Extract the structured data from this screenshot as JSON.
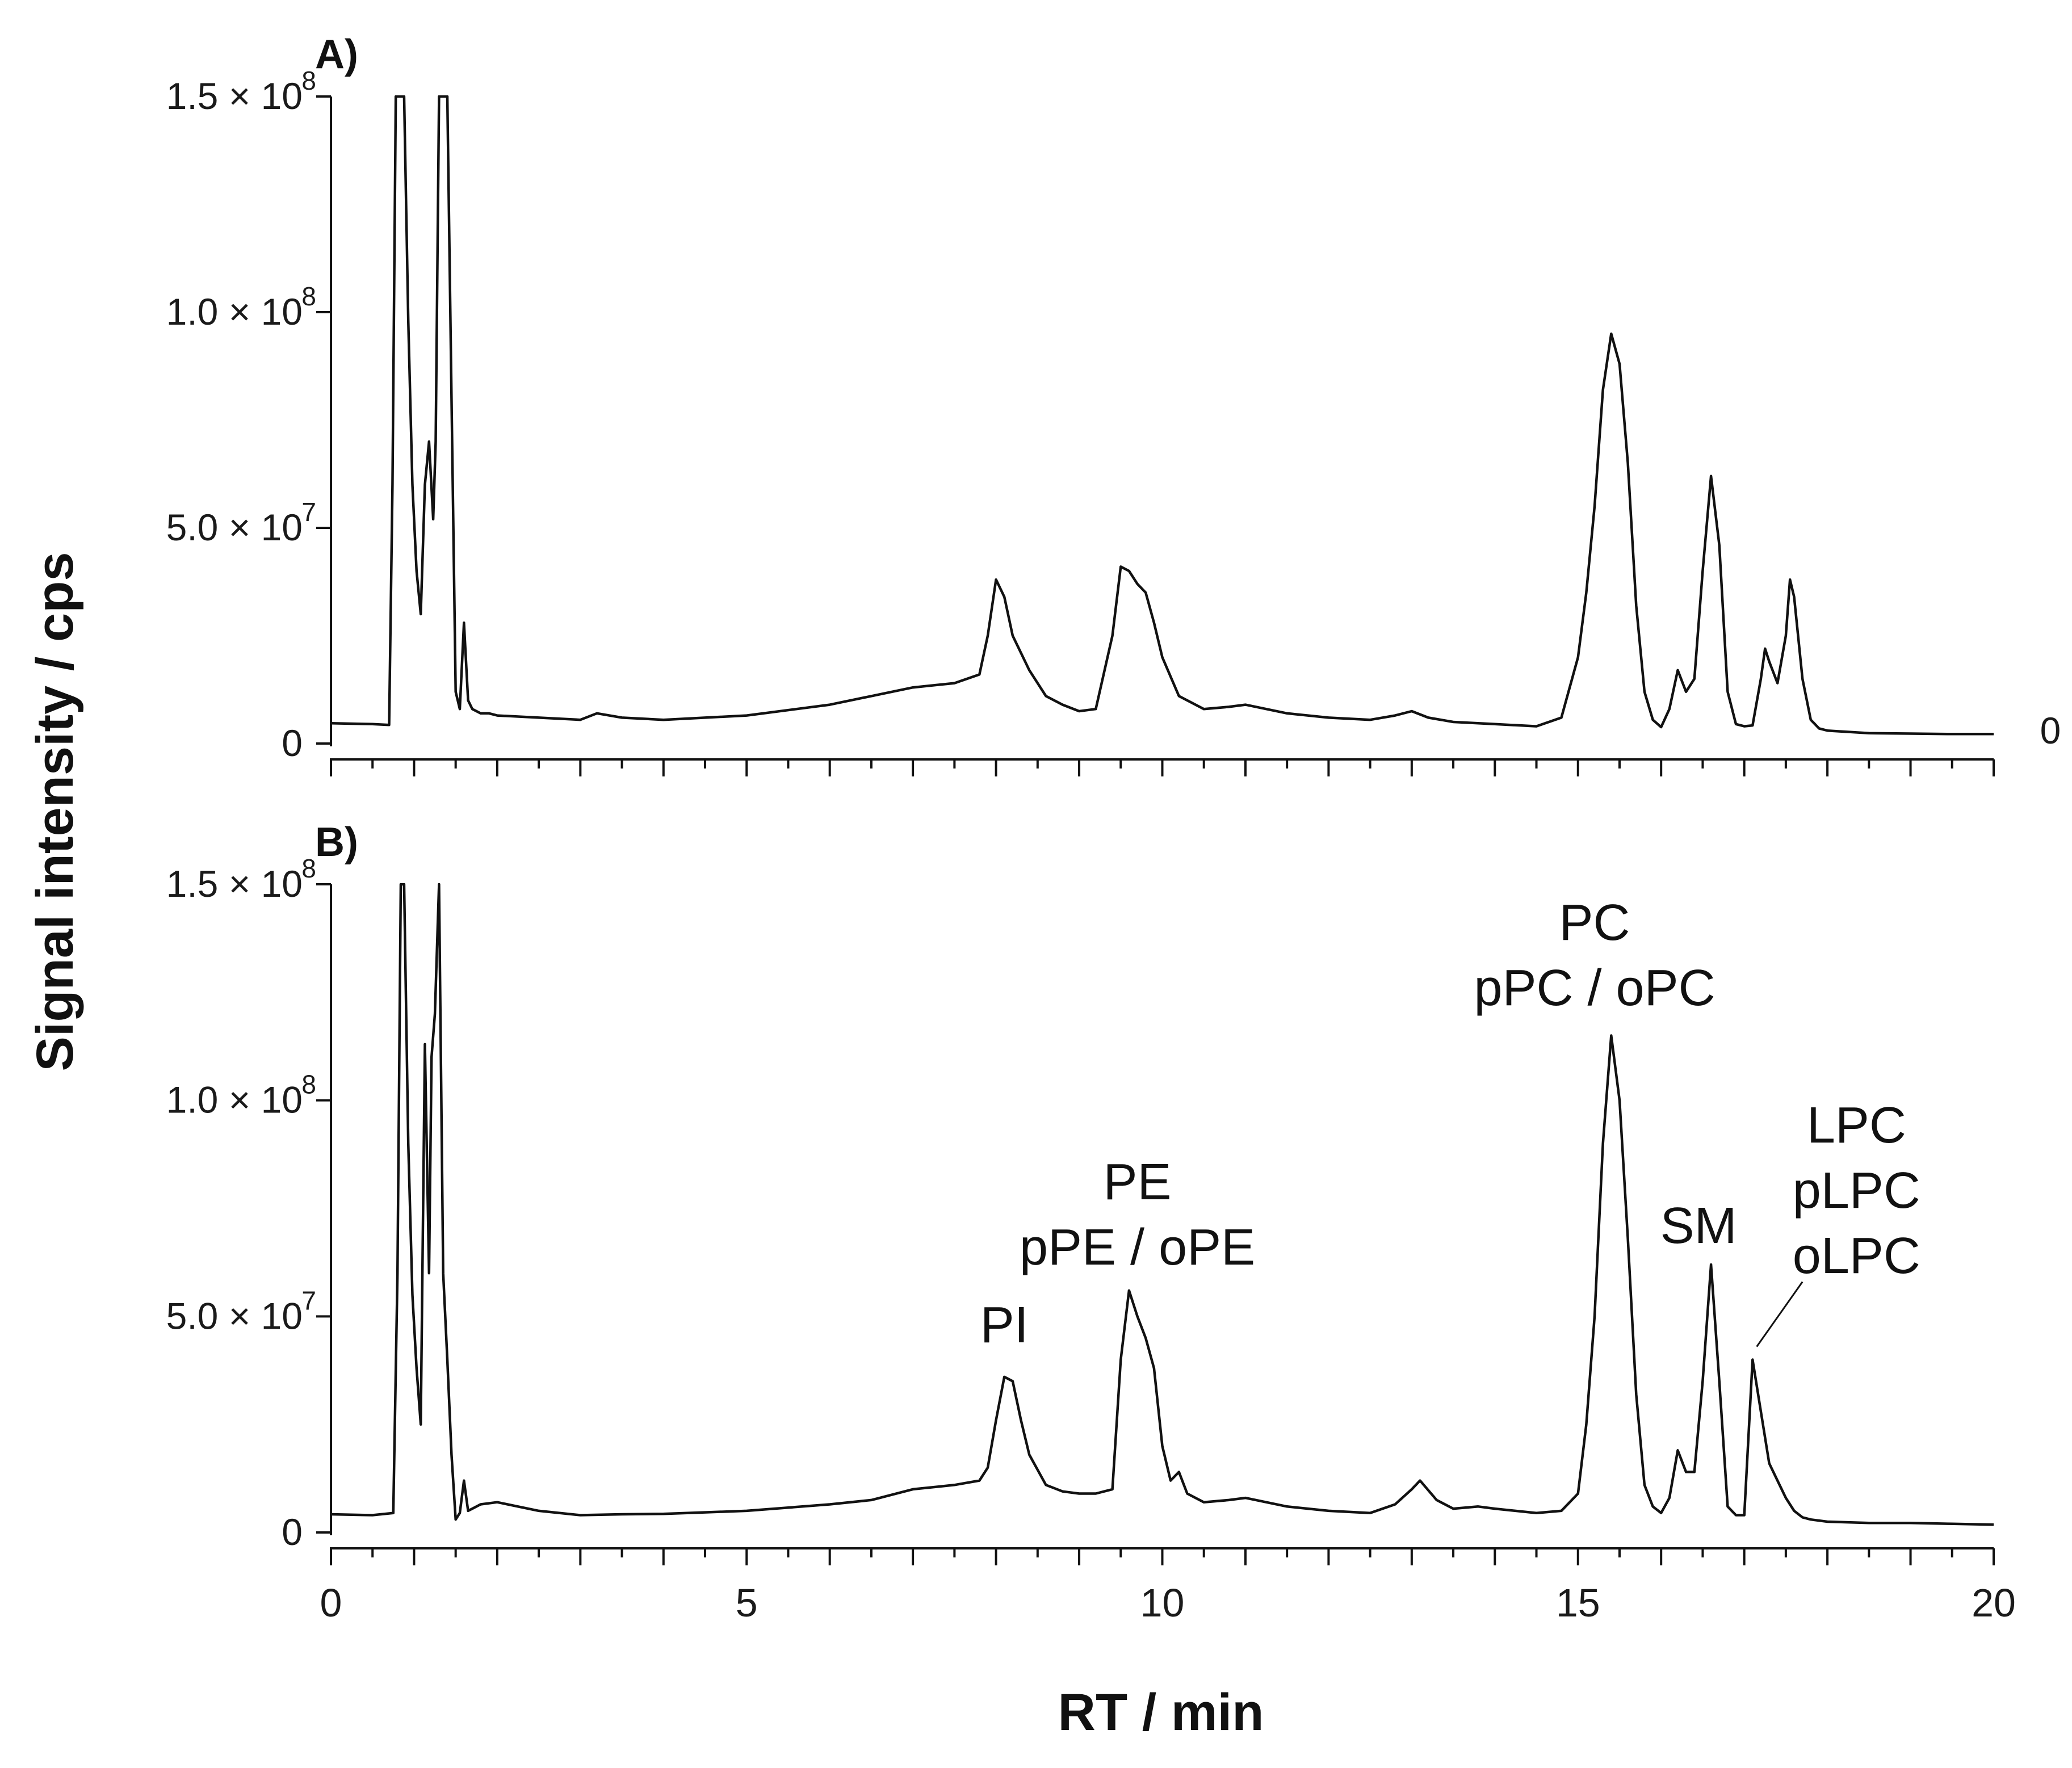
{
  "chart_data": [
    {
      "type": "line",
      "panel_label": "A)",
      "xlabel": "RT / min",
      "ylabel": "Signal intensity / cps",
      "xlim": [
        0,
        20
      ],
      "ylim": [
        0,
        150000000
      ],
      "x_ticks": [
        {
          "value": 0,
          "label": "0"
        },
        {
          "value": 5,
          "label": "5"
        },
        {
          "value": 10,
          "label": "10"
        },
        {
          "value": 15,
          "label": "15"
        },
        {
          "value": 20,
          "label": "20"
        }
      ],
      "y_ticks": [
        {
          "value": 0,
          "mantissa": "0",
          "exponent": ""
        },
        {
          "value": 50000000,
          "mantissa": "5.0 × 10",
          "exponent": "7"
        },
        {
          "value": 100000000,
          "mantissa": "1.0 × 10",
          "exponent": "8"
        },
        {
          "value": 150000000,
          "mantissa": "1.5 × 10",
          "exponent": "8"
        }
      ],
      "right_label": "0",
      "annotations": [],
      "series": [
        {
          "color": "#111111",
          "x": [
            0,
            0.5,
            0.7,
            0.74,
            0.78,
            0.83,
            0.88,
            0.93,
            0.98,
            1.03,
            1.08,
            1.13,
            1.18,
            1.23,
            1.26,
            1.3,
            1.35,
            1.4,
            1.45,
            1.5,
            1.55,
            1.6,
            1.65,
            1.7,
            1.75,
            1.8,
            1.9,
            2.0,
            2.5,
            3.0,
            3.2,
            3.5,
            4.0,
            5.0,
            6.0,
            6.5,
            7.0,
            7.5,
            7.8,
            7.9,
            8.0,
            8.1,
            8.2,
            8.4,
            8.6,
            8.8,
            9.0,
            9.2,
            9.4,
            9.5,
            9.6,
            9.7,
            9.8,
            9.9,
            10.0,
            10.2,
            10.5,
            10.8,
            11.0,
            11.5,
            12.0,
            12.5,
            12.8,
            13.0,
            13.2,
            13.5,
            14.0,
            14.5,
            14.8,
            15.0,
            15.1,
            15.2,
            15.3,
            15.4,
            15.5,
            15.6,
            15.7,
            15.8,
            15.9,
            16.0,
            16.1,
            16.2,
            16.3,
            16.4,
            16.5,
            16.6,
            16.7,
            16.8,
            16.9,
            17.0,
            17.1,
            17.2,
            17.25,
            17.3,
            17.4,
            17.5,
            17.55,
            17.6,
            17.7,
            17.8,
            17.9,
            18.0,
            18.5,
            19.0,
            19.5,
            20.0
          ],
          "y": [
            4700000,
            4500000,
            4300000,
            60000000,
            150000000,
            150000000,
            150000000,
            98000000,
            60000000,
            40000000,
            30000000,
            60000000,
            70000000,
            52000000,
            70000000,
            150000000,
            150000000,
            150000000,
            80000000,
            12000000,
            8000000,
            28000000,
            10000000,
            8000000,
            7500000,
            7000000,
            7000000,
            6500000,
            6000000,
            5500000,
            7000000,
            6000000,
            5500000,
            6500000,
            9000000,
            11000000,
            13000000,
            14000000,
            16000000,
            25000000,
            38000000,
            34000000,
            25000000,
            17000000,
            11000000,
            9000000,
            7500000,
            8000000,
            25000000,
            41000000,
            40000000,
            37000000,
            35000000,
            28000000,
            20000000,
            11000000,
            8000000,
            8500000,
            9000000,
            7000000,
            6000000,
            5500000,
            6500000,
            7500000,
            6000000,
            5000000,
            4500000,
            4000000,
            6000000,
            20000000,
            35000000,
            55000000,
            82000000,
            95000000,
            88000000,
            65000000,
            32000000,
            12000000,
            5500000,
            3800000,
            8000000,
            17000000,
            12000000,
            15000000,
            40000000,
            62000000,
            46000000,
            12000000,
            4500000,
            4000000,
            4200000,
            15000000,
            22000000,
            19000000,
            14000000,
            25000000,
            38000000,
            34000000,
            15000000,
            5500000,
            3500000,
            3000000,
            2400000,
            2300000,
            2200000,
            2200000
          ]
        }
      ]
    },
    {
      "type": "line",
      "panel_label": "B)",
      "xlabel": "RT / min",
      "ylabel": "Signal intensity / cps",
      "xlim": [
        0,
        20
      ],
      "ylim": [
        0,
        150000000
      ],
      "x_ticks": [
        {
          "value": 0,
          "label": "0"
        },
        {
          "value": 5,
          "label": "5"
        },
        {
          "value": 10,
          "label": "10"
        },
        {
          "value": 15,
          "label": "15"
        },
        {
          "value": 20,
          "label": "20"
        }
      ],
      "y_ticks": [
        {
          "value": 0,
          "mantissa": "0",
          "exponent": ""
        },
        {
          "value": 50000000,
          "mantissa": "5.0 × 10",
          "exponent": "7"
        },
        {
          "value": 100000000,
          "mantissa": "1.0 × 10",
          "exponent": "8"
        },
        {
          "value": 150000000,
          "mantissa": "1.5 × 10",
          "exponent": "8"
        }
      ],
      "right_label": "",
      "annotations": [
        {
          "lines": [
            "PI"
          ],
          "x": 8.1,
          "y": 44000000
        },
        {
          "lines": [
            "PE",
            "pPE / oPE"
          ],
          "x": 9.7,
          "y": 62000000
        },
        {
          "lines": [
            "PC",
            "pPC / oPC"
          ],
          "x": 15.2,
          "y": 122000000
        },
        {
          "lines": [
            "SM"
          ],
          "x": 16.45,
          "y": 67000000
        },
        {
          "lines": [
            "LPC",
            "pLPC",
            "oLPC"
          ],
          "x": 18.35,
          "y": 60000000
        }
      ],
      "series": [
        {
          "color": "#111111",
          "x": [
            0,
            0.5,
            0.75,
            0.8,
            0.84,
            0.88,
            0.93,
            0.98,
            1.03,
            1.08,
            1.13,
            1.18,
            1.21,
            1.25,
            1.3,
            1.35,
            1.4,
            1.45,
            1.5,
            1.55,
            1.6,
            1.65,
            1.7,
            1.8,
            2.0,
            2.5,
            3.0,
            3.5,
            4.0,
            5.0,
            6.0,
            6.5,
            7.0,
            7.5,
            7.8,
            7.9,
            8.0,
            8.1,
            8.2,
            8.3,
            8.4,
            8.6,
            8.8,
            9.0,
            9.2,
            9.4,
            9.5,
            9.6,
            9.7,
            9.8,
            9.9,
            10.0,
            10.1,
            10.2,
            10.3,
            10.5,
            10.8,
            11.0,
            11.5,
            12.0,
            12.5,
            12.8,
            13.0,
            13.1,
            13.3,
            13.5,
            13.8,
            14.0,
            14.5,
            14.8,
            15.0,
            15.1,
            15.2,
            15.3,
            15.4,
            15.5,
            15.6,
            15.7,
            15.8,
            15.9,
            16.0,
            16.1,
            16.2,
            16.3,
            16.4,
            16.5,
            16.6,
            16.7,
            16.8,
            16.9,
            17.0,
            17.1,
            17.2,
            17.3,
            17.4,
            17.5,
            17.6,
            17.7,
            17.8,
            18.0,
            18.5,
            19.0,
            19.5,
            20.0
          ],
          "y": [
            4200000,
            4000000,
            4500000,
            60000000,
            150000000,
            150000000,
            90000000,
            55000000,
            38000000,
            25000000,
            113000000,
            60000000,
            110000000,
            120000000,
            150000000,
            60000000,
            40000000,
            18000000,
            3000000,
            4500000,
            12000000,
            5000000,
            5500000,
            6500000,
            7000000,
            5000000,
            4000000,
            4200000,
            4300000,
            5000000,
            6500000,
            7500000,
            10000000,
            11000000,
            12000000,
            15000000,
            26000000,
            36000000,
            35000000,
            26000000,
            18000000,
            11000000,
            9500000,
            9000000,
            9000000,
            10000000,
            40000000,
            56000000,
            50000000,
            45000000,
            38000000,
            20000000,
            12000000,
            14000000,
            9000000,
            7000000,
            7500000,
            8000000,
            6000000,
            5000000,
            4500000,
            6500000,
            10000000,
            12000000,
            7500000,
            5500000,
            6000000,
            5500000,
            4500000,
            5000000,
            9000000,
            25000000,
            50000000,
            90000000,
            115000000,
            100000000,
            68000000,
            32000000,
            11000000,
            6000000,
            4500000,
            8000000,
            19000000,
            14000000,
            14000000,
            35000000,
            62000000,
            35000000,
            6000000,
            4000000,
            4000000,
            40000000,
            28000000,
            16000000,
            12000000,
            8000000,
            5000000,
            3500000,
            3000000,
            2500000,
            2200000,
            2200000,
            2000000,
            1800000
          ]
        }
      ]
    }
  ],
  "labels": {
    "ylabel": "Signal intensity / cps",
    "xlabel": "RT / min"
  }
}
